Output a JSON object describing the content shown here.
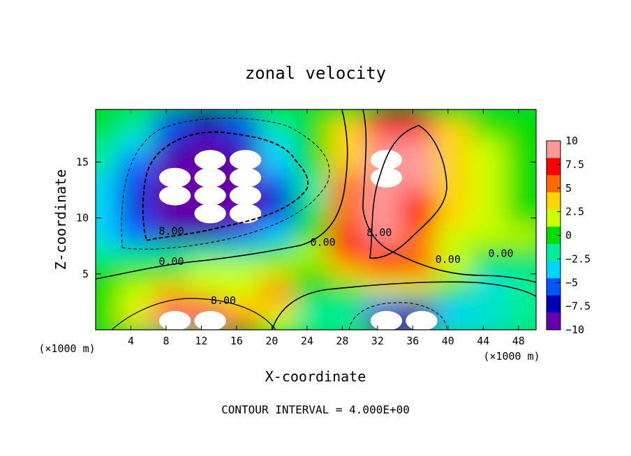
{
  "chart_data": {
    "type": "heatmap",
    "title": "zonal velocity",
    "xlabel": "X-coordinate",
    "ylabel": "Z-coordinate",
    "x_unit": "(×1000 m)",
    "y_unit": "(×1000 m)",
    "xlim": [
      0,
      50
    ],
    "ylim": [
      0,
      19.7
    ],
    "x_ticks": [
      4,
      8,
      12,
      16,
      20,
      24,
      28,
      32,
      36,
      40,
      44,
      48
    ],
    "y_ticks": [
      5,
      10,
      15
    ],
    "colorbar": {
      "range": [
        -10,
        10
      ],
      "ticks": [
        "10",
        "7.5",
        "5",
        "2.5",
        "0",
        "−2.5",
        "−5",
        "−7.5",
        "−10"
      ],
      "tick_values": [
        10,
        7.5,
        5,
        2.5,
        0,
        -2.5,
        -5,
        -7.5,
        -10
      ],
      "colors": [
        "#ff9999",
        "#ff0000",
        "#ff6a00",
        "#ffd500",
        "#ccff00",
        "#00dd00",
        "#00ee99",
        "#00d5ff",
        "#0055ff",
        "#0000bb",
        "#6600aa"
      ]
    },
    "contour_labels": [
      {
        "text": "8.00",
        "x": 8.6,
        "z": 8.5
      },
      {
        "text": "0.00",
        "x": 8.6,
        "z": 5.8
      },
      {
        "text": "8.00",
        "x": 14.5,
        "z": 2.3
      },
      {
        "text": "0.00",
        "x": 25.8,
        "z": 7.5
      },
      {
        "text": "8.00",
        "x": 32.2,
        "z": 8.4
      },
      {
        "text": "0.00",
        "x": 40.0,
        "z": 6.0
      },
      {
        "text": "0.00",
        "x": 46.0,
        "z": 6.5
      }
    ],
    "footer": "CONTOUR INTERVAL = 4.000E+00",
    "gridded_approx": {
      "x": [
        1,
        5,
        9,
        13,
        17,
        21,
        25,
        29,
        33,
        37,
        41,
        45,
        49
      ],
      "z": [
        0.8,
        2.4,
        4.0,
        5.6,
        7.2,
        8.8,
        10.4,
        12.0,
        13.6,
        15.2,
        16.8,
        18.4
      ],
      "u": [
        [
          0,
          4,
          10,
          10,
          8,
          2,
          -1,
          -2,
          -10,
          -10,
          -4,
          -3,
          -1
        ],
        [
          0,
          2,
          8,
          8,
          4,
          3,
          -1,
          -1,
          -6,
          -7,
          -3,
          -2,
          -1
        ],
        [
          0,
          1,
          3,
          2,
          1,
          5,
          0,
          0,
          2,
          1,
          0,
          -3,
          -2
        ],
        [
          0,
          0,
          0,
          1,
          2,
          1,
          0,
          4,
          6,
          6,
          1,
          -1,
          -1
        ],
        [
          -2,
          -1,
          -2,
          -2,
          -1,
          0,
          1,
          7,
          8,
          5,
          2,
          0,
          0
        ],
        [
          -3,
          -5,
          -8,
          -7,
          -6,
          -4,
          0,
          7,
          9,
          6,
          2,
          1,
          1
        ],
        [
          -4,
          -6,
          -9,
          -10,
          -10,
          -6,
          0,
          6,
          9,
          7,
          3,
          1,
          0
        ],
        [
          -4,
          -7,
          -10,
          -10,
          -10,
          -8,
          -1,
          5,
          9,
          8,
          3,
          1,
          0
        ],
        [
          -3,
          -6,
          -10,
          -10,
          -10,
          -6,
          -1,
          5,
          10,
          9,
          4,
          1,
          0
        ],
        [
          -2,
          -5,
          -9,
          -10,
          -10,
          -4,
          0,
          4,
          10,
          9,
          4,
          1,
          0
        ],
        [
          -1,
          -4,
          -7,
          -9,
          -8,
          -3,
          0,
          3,
          9,
          9,
          4,
          1,
          0
        ],
        [
          0,
          -2,
          -5,
          -8,
          -6,
          -2,
          0,
          3,
          8,
          8,
          3,
          0,
          0
        ]
      ]
    }
  }
}
